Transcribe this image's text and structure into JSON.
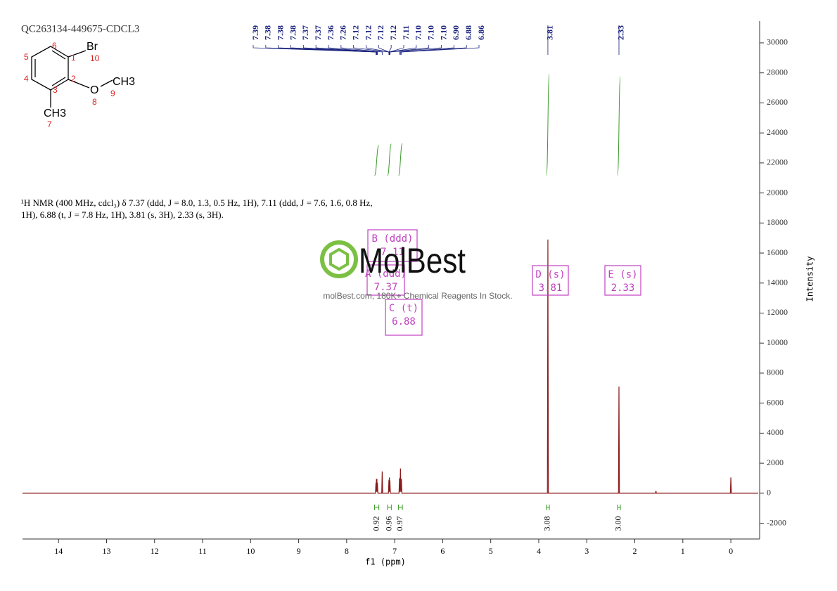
{
  "chart_data": {
    "type": "nmr",
    "sample": "QC263134-449675-CDCL3",
    "description": [
      "¹H NMR (400 MHz, cdcl₃) δ 7.37 (ddd, J = 8.0, 1.3, 0.5 Hz, 1H), 7.11 (ddd, J = 7.6, 1.6, 0.8 Hz,",
      "1H), 6.88 (t, J = 7.8 Hz, 1H), 3.81 (s, 3H), 2.33 (s, 3H)."
    ],
    "structure": {
      "atoms": [
        "Br",
        "O",
        "CH3",
        "CH3"
      ],
      "numbers": [
        "1",
        "2",
        "3",
        "4",
        "5",
        "6",
        "7",
        "8",
        "9",
        "10"
      ]
    },
    "x_label": "f1 (ppm)",
    "y_label": "Intensity",
    "xlim": [
      14.75,
      -0.57
    ],
    "ylim": [
      -3050,
      31450
    ],
    "xticks": [
      14,
      13,
      12,
      11,
      10,
      9,
      8,
      7,
      6,
      5,
      4,
      3,
      2,
      1,
      0
    ],
    "yticks": [
      -2000,
      0,
      2000,
      4000,
      6000,
      8000,
      10000,
      12000,
      14000,
      16000,
      18000,
      20000,
      22000,
      24000,
      26000,
      28000,
      30000
    ],
    "color": "#8b1a1a",
    "x": [
      14.75,
      7.4,
      7.39,
      7.385,
      7.38,
      7.375,
      7.37,
      7.365,
      7.36,
      7.35,
      7.27,
      7.26,
      7.25,
      7.13,
      7.12,
      7.115,
      7.11,
      7.105,
      7.1,
      7.09,
      6.91,
      6.9,
      6.89,
      6.88,
      6.87,
      6.86,
      6.85,
      3.82,
      3.81,
      3.8,
      2.34,
      2.33,
      2.32,
      1.57,
      1.56,
      1.55,
      0.01,
      0,
      -0.01,
      -0.57
    ],
    "values": [
      0,
      0,
      700,
      100,
      950,
      100,
      950,
      100,
      700,
      0,
      0,
      1450,
      0,
      0,
      900,
      100,
      1050,
      100,
      850,
      0,
      0,
      1000,
      100,
      1650,
      100,
      950,
      0,
      0,
      16900,
      0,
      0,
      7100,
      0,
      0,
      150,
      0,
      0,
      1050,
      0,
      0
    ],
    "peak_labels": [
      {
        "value": 7.39,
        "label": "7.39"
      },
      {
        "value": 7.38,
        "label": "7.38"
      },
      {
        "value": 7.38,
        "label": "7.38"
      },
      {
        "value": 7.38,
        "label": "7.38"
      },
      {
        "value": 7.37,
        "label": "7.37"
      },
      {
        "value": 7.37,
        "label": "7.37"
      },
      {
        "value": 7.36,
        "label": "7.36"
      },
      {
        "value": 7.26,
        "label": "7.26"
      },
      {
        "value": 7.12,
        "label": "7.12"
      },
      {
        "value": 7.12,
        "label": "7.12"
      },
      {
        "value": 7.12,
        "label": "7.12"
      },
      {
        "value": 7.12,
        "label": "7.12"
      },
      {
        "value": 7.11,
        "label": "7.11"
      },
      {
        "value": 7.1,
        "label": "7.10"
      },
      {
        "value": 7.1,
        "label": "7.10"
      },
      {
        "value": 7.1,
        "label": "7.10"
      },
      {
        "value": 6.9,
        "label": "6.90"
      },
      {
        "value": 6.88,
        "label": "6.88"
      },
      {
        "value": 6.86,
        "label": "6.86"
      },
      {
        "value": 3.81,
        "label": "3.81"
      },
      {
        "value": 2.33,
        "label": "2.33"
      }
    ],
    "integral_color": "#3c9a2a",
    "integrals": {
      "ranges": [
        [
          7.42,
          7.33
        ],
        [
          7.15,
          7.07
        ],
        [
          6.92,
          6.84
        ],
        [
          3.84,
          3.78
        ],
        [
          2.36,
          2.3
        ]
      ],
      "values": [
        0.92,
        0.96,
        0.97,
        3.08,
        3
      ],
      "value_labels": [
        "0.92",
        "0.96",
        "0.97",
        "3.08",
        "3.00"
      ]
    },
    "multiplets": [
      {
        "label": "B (ddd)",
        "shift": 7.11
      },
      {
        "label": "A (ddd)",
        "shift": 7.37
      },
      {
        "label": "C (t)",
        "shift": 6.88
      },
      {
        "label": "D (s)",
        "shift": 3.81
      },
      {
        "label": "E (s)",
        "shift": 2.33
      }
    ],
    "watermark": {
      "brand": "MolBest",
      "tagline": "molBest.com, 180K+ Chemical Reagents In Stock."
    }
  }
}
